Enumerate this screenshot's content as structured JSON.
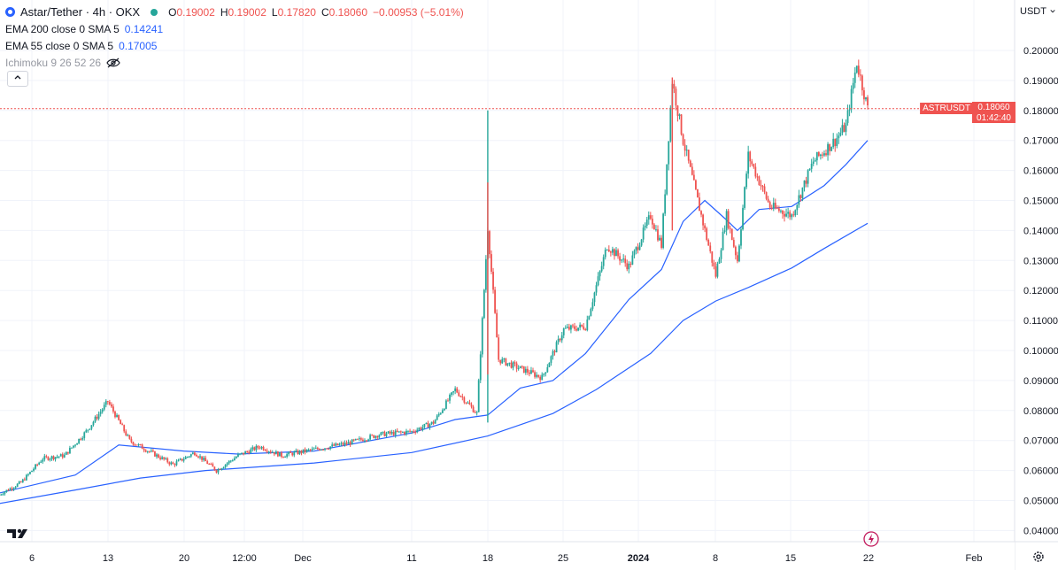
{
  "header": {
    "symbol_title": "Astar/Tether · 4h · OKX",
    "ohlc": [
      {
        "label": "O",
        "value": "0.19002"
      },
      {
        "label": "H",
        "value": "0.19002"
      },
      {
        "label": "L",
        "value": "0.17820"
      },
      {
        "label": "C",
        "value": "0.18060"
      }
    ],
    "change": "−0.00953 (−5.01%)",
    "indicators": [
      {
        "name": "EMA 200 close 0 SMA 5",
        "value": "0.14241"
      },
      {
        "name": "EMA 55 close 0 SMA 5",
        "value": "0.17005"
      }
    ],
    "ichimoku": "Ichimoku 9 26 52 26",
    "collapse_icon": "chevron-up-icon",
    "currency": "USDT"
  },
  "price_tag": {
    "symbol": "ASTRUSDT",
    "price": "0.18060",
    "countdown": "01:42:40"
  },
  "colors": {
    "up": "#26a69a",
    "down": "#ef5350",
    "ema": "#2962ff",
    "last_line": "#ef5350"
  },
  "icons": {
    "logo": "tradingview-logo-icon",
    "bolt": "bolt-icon",
    "settings": "gear-icon",
    "visibility": "eye-off-icon"
  },
  "chart_data": {
    "type": "candlestick",
    "y_axis_labels": [
      "0.04000",
      "0.05000",
      "0.06000",
      "0.07000",
      "0.08000",
      "0.09000",
      "0.10000",
      "0.11000",
      "0.12000",
      "0.13000",
      "0.14000",
      "0.15000",
      "0.16000",
      "0.17000",
      "0.18000",
      "0.19000",
      "0.20000"
    ],
    "x_axis_labels": [
      "6",
      "13",
      "20",
      "12:00",
      "Dec",
      "11",
      "18",
      "25",
      "2024",
      "8",
      "15",
      "22",
      "Feb"
    ],
    "ylim": [
      0.035,
      0.21
    ],
    "last_price": 0.1806,
    "close_path": [
      {
        "date": "Nov 3",
        "price": 0.052
      },
      {
        "date": "Nov 5",
        "price": 0.056
      },
      {
        "date": "Nov 7",
        "price": 0.064
      },
      {
        "date": "Nov 9",
        "price": 0.065
      },
      {
        "date": "Nov 11",
        "price": 0.073
      },
      {
        "date": "Nov 13",
        "price": 0.083
      },
      {
        "date": "Nov 15",
        "price": 0.07
      },
      {
        "date": "Nov 17",
        "price": 0.066
      },
      {
        "date": "Nov 19",
        "price": 0.062
      },
      {
        "date": "Nov 21",
        "price": 0.066
      },
      {
        "date": "Nov 23",
        "price": 0.06
      },
      {
        "date": "Nov 25",
        "price": 0.065
      },
      {
        "date": "Nov 27",
        "price": 0.068
      },
      {
        "date": "Nov 29",
        "price": 0.065
      },
      {
        "date": "Dec 2",
        "price": 0.067
      },
      {
        "date": "Dec 5",
        "price": 0.069
      },
      {
        "date": "Dec 8",
        "price": 0.072
      },
      {
        "date": "Dec 11",
        "price": 0.073
      },
      {
        "date": "Dec 13",
        "price": 0.076
      },
      {
        "date": "Dec 15",
        "price": 0.087
      },
      {
        "date": "Dec 17",
        "price": 0.079
      },
      {
        "date": "Dec 18",
        "price": 0.141
      },
      {
        "date": "Dec 19",
        "price": 0.097
      },
      {
        "date": "Dec 21",
        "price": 0.094
      },
      {
        "date": "Dec 23",
        "price": 0.091
      },
      {
        "date": "Dec 25",
        "price": 0.107
      },
      {
        "date": "Dec 27",
        "price": 0.108
      },
      {
        "date": "Dec 29",
        "price": 0.135
      },
      {
        "date": "Dec 31",
        "price": 0.128
      },
      {
        "date": "Jan 2",
        "price": 0.145
      },
      {
        "date": "Jan 3",
        "price": 0.135
      },
      {
        "date": "Jan 4",
        "price": 0.19
      },
      {
        "date": "Jan 5",
        "price": 0.17
      },
      {
        "date": "Jan 6",
        "price": 0.155
      },
      {
        "date": "Jan 7",
        "price": 0.14
      },
      {
        "date": "Jan 8",
        "price": 0.125
      },
      {
        "date": "Jan 9",
        "price": 0.145
      },
      {
        "date": "Jan 10",
        "price": 0.13
      },
      {
        "date": "Jan 11",
        "price": 0.165
      },
      {
        "date": "Jan 13",
        "price": 0.148
      },
      {
        "date": "Jan 15",
        "price": 0.145
      },
      {
        "date": "Jan 17",
        "price": 0.163
      },
      {
        "date": "Jan 19",
        "price": 0.17
      },
      {
        "date": "Jan 20",
        "price": 0.175
      },
      {
        "date": "Jan 21",
        "price": 0.196
      },
      {
        "date": "Jan 22",
        "price": 0.1806
      }
    ],
    "ema55_path": [
      {
        "date": "Nov 3",
        "price": 0.0525
      },
      {
        "date": "Nov 10",
        "price": 0.0585
      },
      {
        "date": "Nov 14",
        "price": 0.0685
      },
      {
        "date": "Nov 20",
        "price": 0.0665
      },
      {
        "date": "Nov 25",
        "price": 0.0655
      },
      {
        "date": "Dec 2",
        "price": 0.0665
      },
      {
        "date": "Dec 11",
        "price": 0.0725
      },
      {
        "date": "Dec 15",
        "price": 0.077
      },
      {
        "date": "Dec 18",
        "price": 0.0785
      },
      {
        "date": "Dec 21",
        "price": 0.0875
      },
      {
        "date": "Dec 24",
        "price": 0.09
      },
      {
        "date": "Dec 27",
        "price": 0.099
      },
      {
        "date": "Dec 31",
        "price": 0.117
      },
      {
        "date": "Jan 3",
        "price": 0.127
      },
      {
        "date": "Jan 5",
        "price": 0.143
      },
      {
        "date": "Jan 7",
        "price": 0.15
      },
      {
        "date": "Jan 9",
        "price": 0.1435
      },
      {
        "date": "Jan 10",
        "price": 0.14
      },
      {
        "date": "Jan 12",
        "price": 0.147
      },
      {
        "date": "Jan 15",
        "price": 0.148
      },
      {
        "date": "Jan 18",
        "price": 0.155
      },
      {
        "date": "Jan 20",
        "price": 0.162
      },
      {
        "date": "Jan 22",
        "price": 0.17
      }
    ],
    "ema200_path": [
      {
        "date": "Nov 3",
        "price": 0.049
      },
      {
        "date": "Nov 10",
        "price": 0.0535
      },
      {
        "date": "Nov 16",
        "price": 0.0575
      },
      {
        "date": "Nov 22",
        "price": 0.06
      },
      {
        "date": "Dec 2",
        "price": 0.0625
      },
      {
        "date": "Dec 11",
        "price": 0.066
      },
      {
        "date": "Dec 18",
        "price": 0.0715
      },
      {
        "date": "Dec 24",
        "price": 0.079
      },
      {
        "date": "Dec 28",
        "price": 0.087
      },
      {
        "date": "Jan 2",
        "price": 0.099
      },
      {
        "date": "Jan 5",
        "price": 0.11
      },
      {
        "date": "Jan 8",
        "price": 0.1165
      },
      {
        "date": "Jan 11",
        "price": 0.121
      },
      {
        "date": "Jan 15",
        "price": 0.1275
      },
      {
        "date": "Jan 18",
        "price": 0.134
      },
      {
        "date": "Jan 22",
        "price": 0.1424
      }
    ]
  }
}
